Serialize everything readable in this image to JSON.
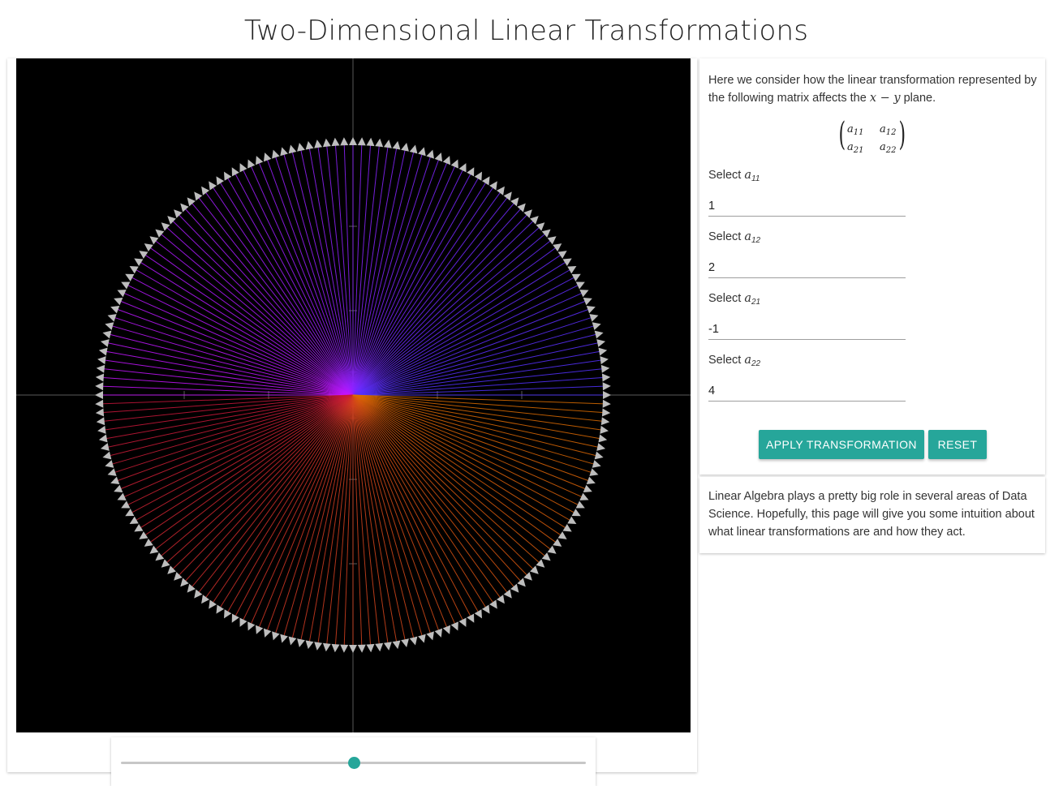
{
  "title": "Two-Dimensional Linear Transformations",
  "intro": {
    "text_before": "Here we consider how the linear transformation represented by the following matrix affects the ",
    "math": "x − y",
    "text_after": " plane."
  },
  "matrix": {
    "a11": {
      "base": "a",
      "sub": "11"
    },
    "a12": {
      "base": "a",
      "sub": "12"
    },
    "a21": {
      "base": "a",
      "sub": "21"
    },
    "a22": {
      "base": "a",
      "sub": "22"
    }
  },
  "fields": [
    {
      "label": "Select ",
      "var": "a",
      "sub": "11",
      "value": "1"
    },
    {
      "label": "Select ",
      "var": "a",
      "sub": "12",
      "value": "2"
    },
    {
      "label": "Select ",
      "var": "a",
      "sub": "21",
      "value": "-1"
    },
    {
      "label": "Select ",
      "var": "a",
      "sub": "22",
      "value": "4"
    }
  ],
  "buttons": {
    "apply": "APPLY TRANSFORMATION",
    "reset": "RESET"
  },
  "info": "Linear Algebra plays a pretty big role in several areas of Data Science. Hopefully, this page will give you some intuition about what linear transformations are and how they act.",
  "slider": {
    "value": 0.5
  },
  "colors": {
    "accent": "#26a69a",
    "plot_background": "#000000",
    "axis": "#5a5a5a",
    "arrowhead": "#bdbdbd"
  },
  "plot": {
    "ray_count": 180,
    "ticks_per_half_axis": 2
  }
}
